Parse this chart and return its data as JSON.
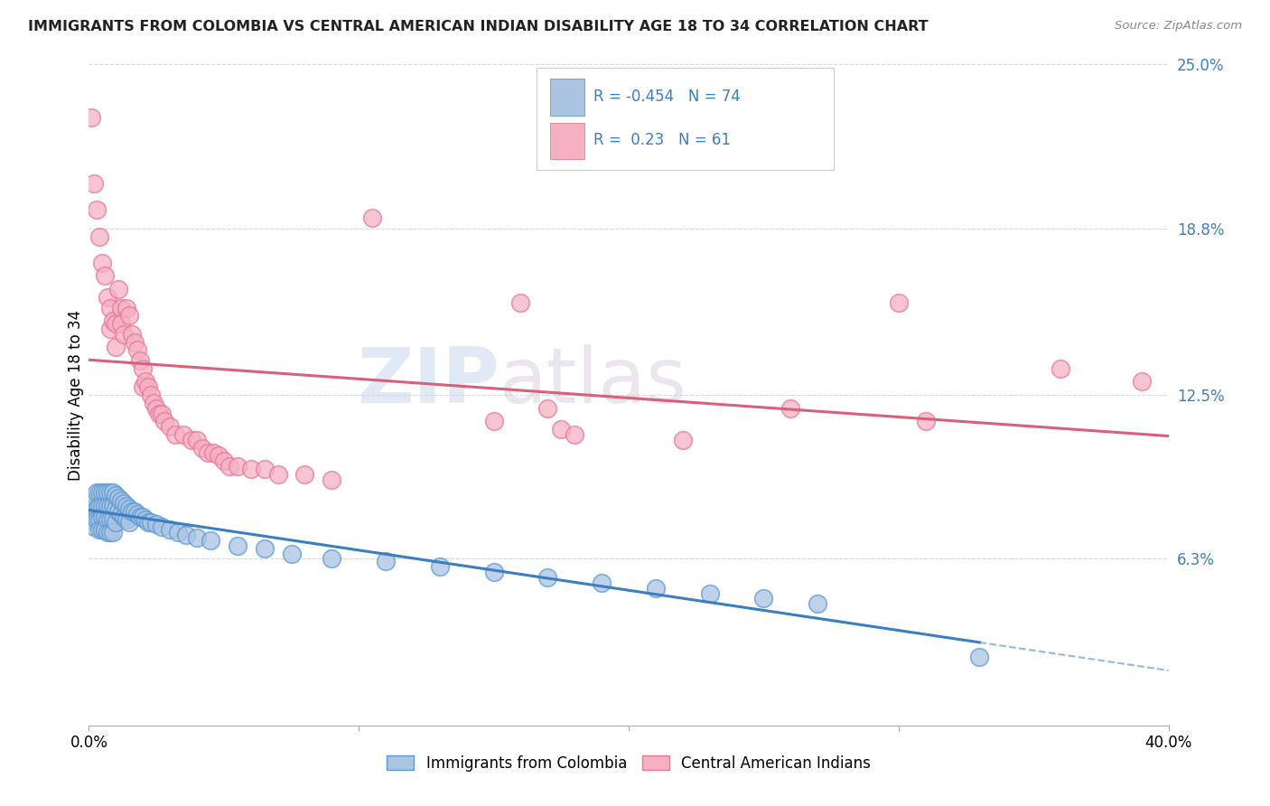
{
  "title": "IMMIGRANTS FROM COLOMBIA VS CENTRAL AMERICAN INDIAN DISABILITY AGE 18 TO 34 CORRELATION CHART",
  "source": "Source: ZipAtlas.com",
  "ylabel": "Disability Age 18 to 34",
  "x_min": 0.0,
  "x_max": 0.4,
  "y_min": 0.0,
  "y_max": 0.25,
  "y_tick_labels_right": [
    "6.3%",
    "12.5%",
    "18.8%",
    "25.0%"
  ],
  "y_tick_vals_right": [
    0.063,
    0.125,
    0.188,
    0.25
  ],
  "blue_R": -0.454,
  "blue_N": 74,
  "pink_R": 0.23,
  "pink_N": 61,
  "blue_color": "#aac4e2",
  "pink_color": "#f5b0c2",
  "blue_edge_color": "#5b9bd5",
  "pink_edge_color": "#e8789a",
  "blue_line_color": "#3a7fc1",
  "pink_line_color": "#d9607a",
  "blue_scatter": [
    [
      0.001,
      0.082
    ],
    [
      0.001,
      0.078
    ],
    [
      0.002,
      0.085
    ],
    [
      0.002,
      0.08
    ],
    [
      0.002,
      0.075
    ],
    [
      0.003,
      0.088
    ],
    [
      0.003,
      0.082
    ],
    [
      0.003,
      0.078
    ],
    [
      0.004,
      0.088
    ],
    [
      0.004,
      0.083
    ],
    [
      0.004,
      0.078
    ],
    [
      0.004,
      0.074
    ],
    [
      0.005,
      0.088
    ],
    [
      0.005,
      0.083
    ],
    [
      0.005,
      0.079
    ],
    [
      0.005,
      0.074
    ],
    [
      0.006,
      0.088
    ],
    [
      0.006,
      0.083
    ],
    [
      0.006,
      0.079
    ],
    [
      0.006,
      0.074
    ],
    [
      0.007,
      0.088
    ],
    [
      0.007,
      0.083
    ],
    [
      0.007,
      0.078
    ],
    [
      0.007,
      0.073
    ],
    [
      0.008,
      0.088
    ],
    [
      0.008,
      0.083
    ],
    [
      0.008,
      0.078
    ],
    [
      0.008,
      0.073
    ],
    [
      0.009,
      0.088
    ],
    [
      0.009,
      0.083
    ],
    [
      0.009,
      0.078
    ],
    [
      0.009,
      0.073
    ],
    [
      0.01,
      0.087
    ],
    [
      0.01,
      0.082
    ],
    [
      0.01,
      0.077
    ],
    [
      0.011,
      0.086
    ],
    [
      0.011,
      0.081
    ],
    [
      0.012,
      0.085
    ],
    [
      0.012,
      0.08
    ],
    [
      0.013,
      0.084
    ],
    [
      0.013,
      0.079
    ],
    [
      0.014,
      0.083
    ],
    [
      0.014,
      0.078
    ],
    [
      0.015,
      0.082
    ],
    [
      0.015,
      0.077
    ],
    [
      0.016,
      0.081
    ],
    [
      0.017,
      0.081
    ],
    [
      0.018,
      0.08
    ],
    [
      0.019,
      0.079
    ],
    [
      0.02,
      0.079
    ],
    [
      0.021,
      0.078
    ],
    [
      0.022,
      0.077
    ],
    [
      0.023,
      0.077
    ],
    [
      0.025,
      0.076
    ],
    [
      0.027,
      0.075
    ],
    [
      0.03,
      0.074
    ],
    [
      0.033,
      0.073
    ],
    [
      0.036,
      0.072
    ],
    [
      0.04,
      0.071
    ],
    [
      0.045,
      0.07
    ],
    [
      0.055,
      0.068
    ],
    [
      0.065,
      0.067
    ],
    [
      0.075,
      0.065
    ],
    [
      0.09,
      0.063
    ],
    [
      0.11,
      0.062
    ],
    [
      0.13,
      0.06
    ],
    [
      0.15,
      0.058
    ],
    [
      0.17,
      0.056
    ],
    [
      0.19,
      0.054
    ],
    [
      0.21,
      0.052
    ],
    [
      0.23,
      0.05
    ],
    [
      0.25,
      0.048
    ],
    [
      0.27,
      0.046
    ],
    [
      0.33,
      0.026
    ]
  ],
  "pink_scatter": [
    [
      0.001,
      0.23
    ],
    [
      0.002,
      0.205
    ],
    [
      0.003,
      0.195
    ],
    [
      0.004,
      0.185
    ],
    [
      0.005,
      0.175
    ],
    [
      0.006,
      0.17
    ],
    [
      0.007,
      0.162
    ],
    [
      0.008,
      0.158
    ],
    [
      0.008,
      0.15
    ],
    [
      0.009,
      0.153
    ],
    [
      0.01,
      0.152
    ],
    [
      0.01,
      0.143
    ],
    [
      0.011,
      0.165
    ],
    [
      0.012,
      0.158
    ],
    [
      0.012,
      0.152
    ],
    [
      0.013,
      0.148
    ],
    [
      0.014,
      0.158
    ],
    [
      0.015,
      0.155
    ],
    [
      0.016,
      0.148
    ],
    [
      0.017,
      0.145
    ],
    [
      0.018,
      0.142
    ],
    [
      0.019,
      0.138
    ],
    [
      0.02,
      0.135
    ],
    [
      0.02,
      0.128
    ],
    [
      0.021,
      0.13
    ],
    [
      0.022,
      0.128
    ],
    [
      0.023,
      0.125
    ],
    [
      0.024,
      0.122
    ],
    [
      0.025,
      0.12
    ],
    [
      0.026,
      0.118
    ],
    [
      0.027,
      0.118
    ],
    [
      0.028,
      0.115
    ],
    [
      0.03,
      0.113
    ],
    [
      0.032,
      0.11
    ],
    [
      0.035,
      0.11
    ],
    [
      0.038,
      0.108
    ],
    [
      0.04,
      0.108
    ],
    [
      0.042,
      0.105
    ],
    [
      0.044,
      0.103
    ],
    [
      0.046,
      0.103
    ],
    [
      0.048,
      0.102
    ],
    [
      0.05,
      0.1
    ],
    [
      0.052,
      0.098
    ],
    [
      0.055,
      0.098
    ],
    [
      0.06,
      0.097
    ],
    [
      0.065,
      0.097
    ],
    [
      0.07,
      0.095
    ],
    [
      0.08,
      0.095
    ],
    [
      0.09,
      0.093
    ],
    [
      0.105,
      0.192
    ],
    [
      0.15,
      0.115
    ],
    [
      0.16,
      0.16
    ],
    [
      0.17,
      0.12
    ],
    [
      0.175,
      0.112
    ],
    [
      0.18,
      0.11
    ],
    [
      0.22,
      0.108
    ],
    [
      0.26,
      0.12
    ],
    [
      0.3,
      0.16
    ],
    [
      0.31,
      0.115
    ],
    [
      0.36,
      0.135
    ],
    [
      0.39,
      0.13
    ]
  ],
  "watermark_zip": "ZIP",
  "watermark_atlas": "atlas",
  "background_color": "#ffffff",
  "grid_color": "#d8d8d8"
}
